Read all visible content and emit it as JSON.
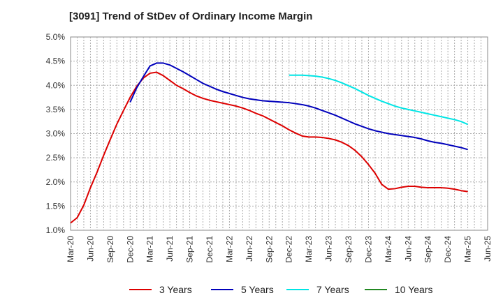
{
  "chart_data": {
    "type": "line",
    "title": "[3091]  Trend of StDev of Ordinary Income Margin",
    "xlabel": "",
    "ylabel": "",
    "x_ticks": [
      "Mar-20",
      "Jun-20",
      "Sep-20",
      "Dec-20",
      "Mar-21",
      "Jun-21",
      "Sep-21",
      "Dec-21",
      "Mar-22",
      "Jun-22",
      "Sep-22",
      "Dec-22",
      "Mar-23",
      "Jun-23",
      "Sep-23",
      "Dec-23",
      "Mar-24",
      "Jun-24",
      "Sep-24",
      "Dec-24",
      "Mar-25",
      "Jun-25"
    ],
    "y_ticks": [
      "1.0%",
      "1.5%",
      "2.0%",
      "2.5%",
      "3.0%",
      "3.5%",
      "4.0%",
      "4.5%",
      "5.0%"
    ],
    "ylim": [
      1.0,
      5.0
    ],
    "y_unit": "%",
    "grid": true,
    "legend_position": "bottom",
    "series": [
      {
        "name": "3 Years",
        "color": "#dd0000",
        "points": [
          [
            "2020-03",
            1.15
          ],
          [
            "2020-04",
            1.26
          ],
          [
            "2020-05",
            1.52
          ],
          [
            "2020-06",
            1.88
          ],
          [
            "2020-07",
            2.2
          ],
          [
            "2020-08",
            2.55
          ],
          [
            "2020-09",
            2.88
          ],
          [
            "2020-10",
            3.2
          ],
          [
            "2020-11",
            3.48
          ],
          [
            "2020-12",
            3.75
          ],
          [
            "2021-01",
            3.98
          ],
          [
            "2021-02",
            4.15
          ],
          [
            "2021-03",
            4.25
          ],
          [
            "2021-04",
            4.27
          ],
          [
            "2021-05",
            4.2
          ],
          [
            "2021-06",
            4.1
          ],
          [
            "2021-07",
            4.0
          ],
          [
            "2021-08",
            3.93
          ],
          [
            "2021-09",
            3.85
          ],
          [
            "2021-10",
            3.78
          ],
          [
            "2021-11",
            3.73
          ],
          [
            "2021-12",
            3.69
          ],
          [
            "2022-01",
            3.66
          ],
          [
            "2022-02",
            3.63
          ],
          [
            "2022-03",
            3.6
          ],
          [
            "2022-04",
            3.57
          ],
          [
            "2022-05",
            3.53
          ],
          [
            "2022-06",
            3.48
          ],
          [
            "2022-07",
            3.42
          ],
          [
            "2022-08",
            3.37
          ],
          [
            "2022-09",
            3.3
          ],
          [
            "2022-10",
            3.23
          ],
          [
            "2022-11",
            3.16
          ],
          [
            "2022-12",
            3.08
          ],
          [
            "2023-01",
            3.01
          ],
          [
            "2023-02",
            2.95
          ],
          [
            "2023-03",
            2.93
          ],
          [
            "2023-04",
            2.93
          ],
          [
            "2023-05",
            2.92
          ],
          [
            "2023-06",
            2.9
          ],
          [
            "2023-07",
            2.87
          ],
          [
            "2023-08",
            2.82
          ],
          [
            "2023-09",
            2.75
          ],
          [
            "2023-10",
            2.65
          ],
          [
            "2023-11",
            2.52
          ],
          [
            "2023-12",
            2.36
          ],
          [
            "2024-01",
            2.18
          ],
          [
            "2024-02",
            1.95
          ],
          [
            "2024-03",
            1.85
          ],
          [
            "2024-04",
            1.86
          ],
          [
            "2024-05",
            1.89
          ],
          [
            "2024-06",
            1.91
          ],
          [
            "2024-07",
            1.91
          ],
          [
            "2024-08",
            1.89
          ],
          [
            "2024-09",
            1.88
          ],
          [
            "2024-10",
            1.88
          ],
          [
            "2024-11",
            1.88
          ],
          [
            "2024-12",
            1.87
          ],
          [
            "2025-01",
            1.85
          ],
          [
            "2025-02",
            1.82
          ],
          [
            "2025-03",
            1.8
          ]
        ]
      },
      {
        "name": "5 Years",
        "color": "#0000bb",
        "points": [
          [
            "2020-12",
            3.65
          ],
          [
            "2021-01",
            3.95
          ],
          [
            "2021-02",
            4.18
          ],
          [
            "2021-03",
            4.4
          ],
          [
            "2021-04",
            4.46
          ],
          [
            "2021-05",
            4.46
          ],
          [
            "2021-06",
            4.42
          ],
          [
            "2021-07",
            4.35
          ],
          [
            "2021-08",
            4.28
          ],
          [
            "2021-09",
            4.2
          ],
          [
            "2021-10",
            4.12
          ],
          [
            "2021-11",
            4.04
          ],
          [
            "2021-12",
            3.98
          ],
          [
            "2022-01",
            3.92
          ],
          [
            "2022-02",
            3.87
          ],
          [
            "2022-03",
            3.83
          ],
          [
            "2022-04",
            3.79
          ],
          [
            "2022-05",
            3.75
          ],
          [
            "2022-06",
            3.72
          ],
          [
            "2022-07",
            3.7
          ],
          [
            "2022-08",
            3.68
          ],
          [
            "2022-09",
            3.67
          ],
          [
            "2022-10",
            3.66
          ],
          [
            "2022-11",
            3.65
          ],
          [
            "2022-12",
            3.64
          ],
          [
            "2023-01",
            3.62
          ],
          [
            "2023-02",
            3.6
          ],
          [
            "2023-03",
            3.57
          ],
          [
            "2023-04",
            3.53
          ],
          [
            "2023-05",
            3.48
          ],
          [
            "2023-06",
            3.43
          ],
          [
            "2023-07",
            3.38
          ],
          [
            "2023-08",
            3.32
          ],
          [
            "2023-09",
            3.26
          ],
          [
            "2023-10",
            3.2
          ],
          [
            "2023-11",
            3.15
          ],
          [
            "2023-12",
            3.1
          ],
          [
            "2024-01",
            3.06
          ],
          [
            "2024-02",
            3.03
          ],
          [
            "2024-03",
            3.0
          ],
          [
            "2024-04",
            2.98
          ],
          [
            "2024-05",
            2.96
          ],
          [
            "2024-06",
            2.94
          ],
          [
            "2024-07",
            2.92
          ],
          [
            "2024-08",
            2.89
          ],
          [
            "2024-09",
            2.85
          ],
          [
            "2024-10",
            2.82
          ],
          [
            "2024-11",
            2.8
          ],
          [
            "2024-12",
            2.77
          ],
          [
            "2025-01",
            2.74
          ],
          [
            "2025-02",
            2.71
          ],
          [
            "2025-03",
            2.67
          ]
        ]
      },
      {
        "name": "7 Years",
        "color": "#00e5e5",
        "points": [
          [
            "2022-12",
            4.21
          ],
          [
            "2023-01",
            4.21
          ],
          [
            "2023-02",
            4.21
          ],
          [
            "2023-03",
            4.2
          ],
          [
            "2023-04",
            4.19
          ],
          [
            "2023-05",
            4.17
          ],
          [
            "2023-06",
            4.14
          ],
          [
            "2023-07",
            4.1
          ],
          [
            "2023-08",
            4.05
          ],
          [
            "2023-09",
            3.99
          ],
          [
            "2023-10",
            3.93
          ],
          [
            "2023-11",
            3.86
          ],
          [
            "2023-12",
            3.79
          ],
          [
            "2024-01",
            3.73
          ],
          [
            "2024-02",
            3.67
          ],
          [
            "2024-03",
            3.62
          ],
          [
            "2024-04",
            3.57
          ],
          [
            "2024-05",
            3.53
          ],
          [
            "2024-06",
            3.5
          ],
          [
            "2024-07",
            3.47
          ],
          [
            "2024-08",
            3.44
          ],
          [
            "2024-09",
            3.41
          ],
          [
            "2024-10",
            3.38
          ],
          [
            "2024-11",
            3.35
          ],
          [
            "2024-12",
            3.32
          ],
          [
            "2025-01",
            3.29
          ],
          [
            "2025-02",
            3.25
          ],
          [
            "2025-03",
            3.19
          ]
        ]
      },
      {
        "name": "10 Years",
        "color": "#228822",
        "points": []
      }
    ]
  }
}
